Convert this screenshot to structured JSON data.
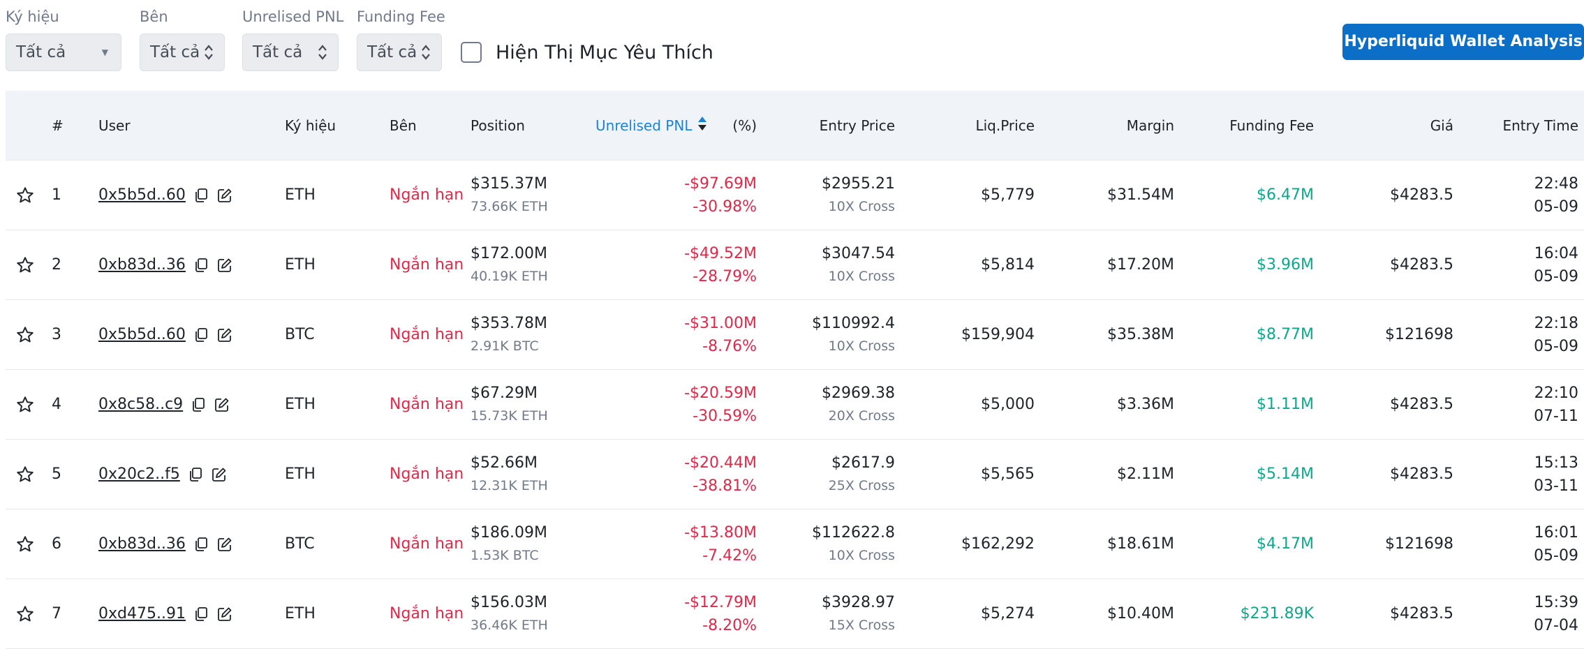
{
  "filters": {
    "symbol": {
      "label": "Ký hiệu",
      "value": "Tất cả"
    },
    "side": {
      "label": "Bên",
      "value": "Tất cả"
    },
    "pnl": {
      "label": "Unrelised PNL",
      "value": "Tất cả"
    },
    "funding": {
      "label": "Funding Fee",
      "value": "Tất cả"
    },
    "favorites_label": "Hiện Thị Mục Yêu Thích"
  },
  "wallet_button": "Hyperliquid Wallet Analysis",
  "columns": {
    "index": "#",
    "user": "User",
    "symbol": "Ký hiệu",
    "side": "Bên",
    "position": "Position",
    "pnl": "Unrelised PNL",
    "pct": "(%)",
    "entry": "Entry Price",
    "liq": "Liq.Price",
    "margin": "Margin",
    "funding": "Funding Fee",
    "price": "Giá",
    "entry_time": "Entry Time"
  },
  "colors": {
    "negative": "#e0294a",
    "positive": "#0ba88d",
    "accent": "#0b6fc7"
  },
  "rows": [
    {
      "idx": "1",
      "user": "0x5b5d..60",
      "symbol": "ETH",
      "side": "Ngắn hạn",
      "pos": "$315.37M",
      "pos_sub": "73.66K ETH",
      "pnl": "-$97.69M",
      "pct": "-30.98%",
      "entry": "$2955.21",
      "lev": "10X Cross",
      "liq": "$5,779",
      "margin": "$31.54M",
      "fee": "$6.47M",
      "price": "$4283.5",
      "time": "22:48",
      "date": "05-09"
    },
    {
      "idx": "2",
      "user": "0xb83d..36",
      "symbol": "ETH",
      "side": "Ngắn hạn",
      "pos": "$172.00M",
      "pos_sub": "40.19K ETH",
      "pnl": "-$49.52M",
      "pct": "-28.79%",
      "entry": "$3047.54",
      "lev": "10X Cross",
      "liq": "$5,814",
      "margin": "$17.20M",
      "fee": "$3.96M",
      "price": "$4283.5",
      "time": "16:04",
      "date": "05-09"
    },
    {
      "idx": "3",
      "user": "0x5b5d..60",
      "symbol": "BTC",
      "side": "Ngắn hạn",
      "pos": "$353.78M",
      "pos_sub": "2.91K BTC",
      "pnl": "-$31.00M",
      "pct": "-8.76%",
      "entry": "$110992.4",
      "lev": "10X Cross",
      "liq": "$159,904",
      "margin": "$35.38M",
      "fee": "$8.77M",
      "price": "$121698",
      "time": "22:18",
      "date": "05-09"
    },
    {
      "idx": "4",
      "user": "0x8c58..c9",
      "symbol": "ETH",
      "side": "Ngắn hạn",
      "pos": "$67.29M",
      "pos_sub": "15.73K ETH",
      "pnl": "-$20.59M",
      "pct": "-30.59%",
      "entry": "$2969.38",
      "lev": "20X Cross",
      "liq": "$5,000",
      "margin": "$3.36M",
      "fee": "$1.11M",
      "price": "$4283.5",
      "time": "22:10",
      "date": "07-11"
    },
    {
      "idx": "5",
      "user": "0x20c2..f5",
      "symbol": "ETH",
      "side": "Ngắn hạn",
      "pos": "$52.66M",
      "pos_sub": "12.31K ETH",
      "pnl": "-$20.44M",
      "pct": "-38.81%",
      "entry": "$2617.9",
      "lev": "25X Cross",
      "liq": "$5,565",
      "margin": "$2.11M",
      "fee": "$5.14M",
      "price": "$4283.5",
      "time": "15:13",
      "date": "03-11"
    },
    {
      "idx": "6",
      "user": "0xb83d..36",
      "symbol": "BTC",
      "side": "Ngắn hạn",
      "pos": "$186.09M",
      "pos_sub": "1.53K BTC",
      "pnl": "-$13.80M",
      "pct": "-7.42%",
      "entry": "$112622.8",
      "lev": "10X Cross",
      "liq": "$162,292",
      "margin": "$18.61M",
      "fee": "$4.17M",
      "price": "$121698",
      "time": "16:01",
      "date": "05-09"
    },
    {
      "idx": "7",
      "user": "0xd475..91",
      "symbol": "ETH",
      "side": "Ngắn hạn",
      "pos": "$156.03M",
      "pos_sub": "36.46K ETH",
      "pnl": "-$12.79M",
      "pct": "-8.20%",
      "entry": "$3928.97",
      "lev": "15X Cross",
      "liq": "$5,274",
      "margin": "$10.40M",
      "fee": "$231.89K",
      "price": "$4283.5",
      "time": "15:39",
      "date": "07-04"
    }
  ]
}
